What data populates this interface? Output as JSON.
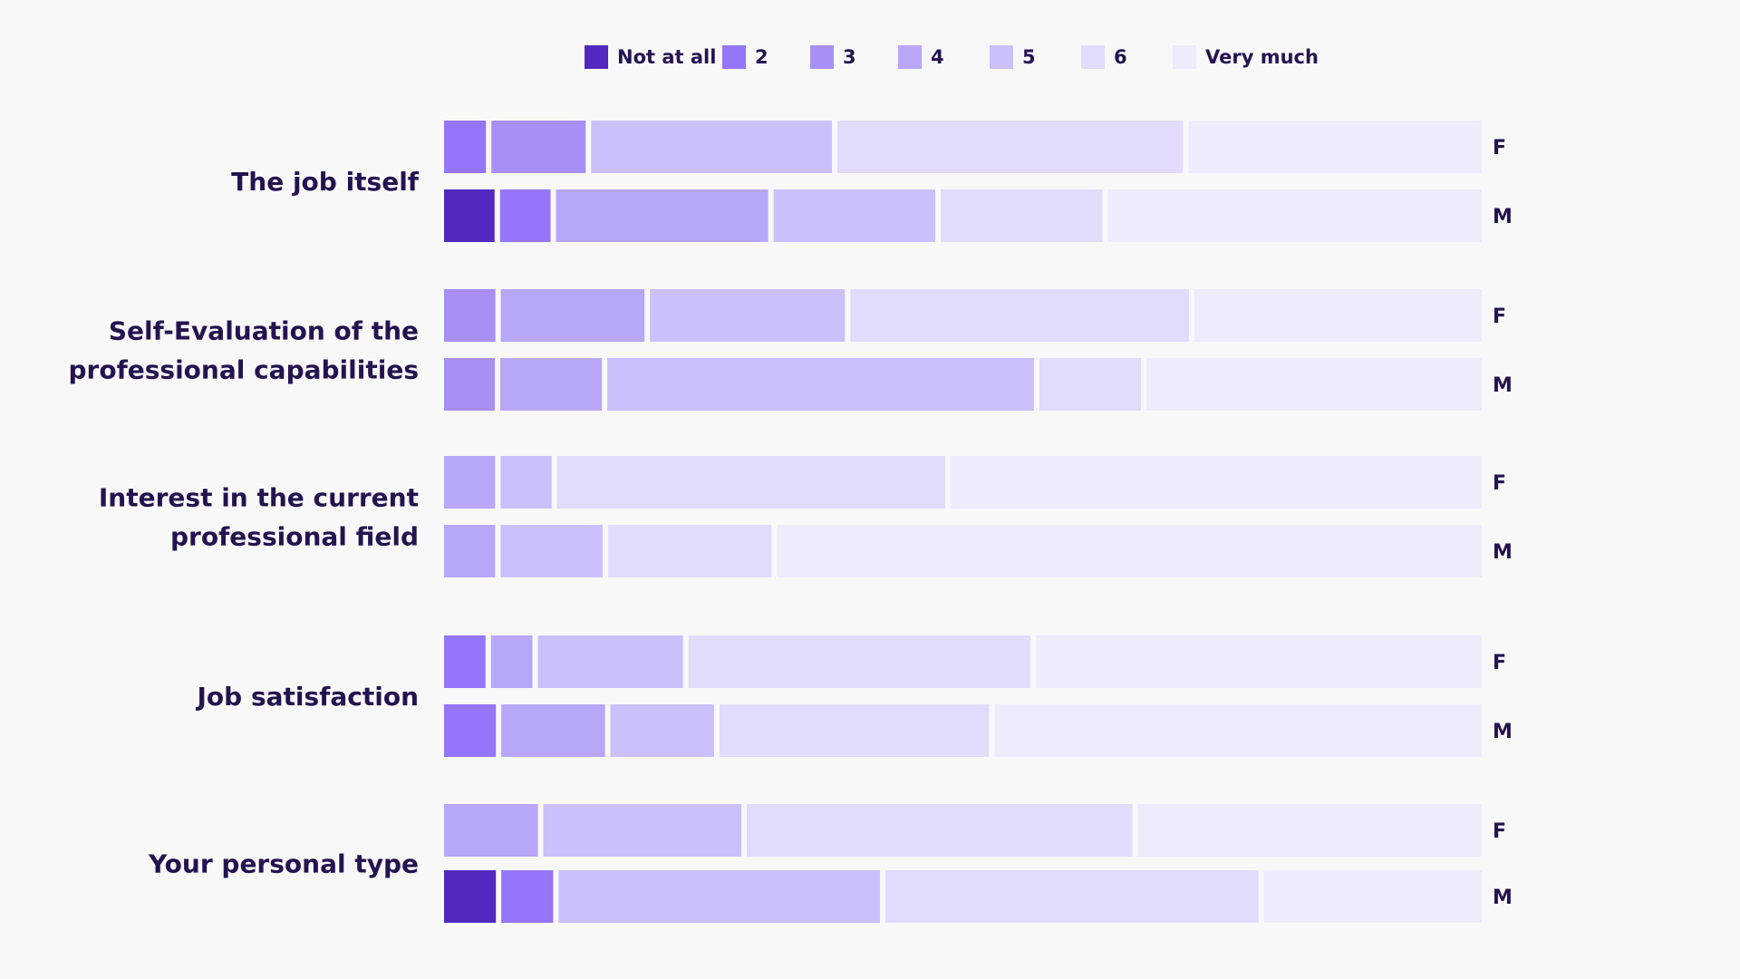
{
  "colors": {
    "background": "#f8f8f8",
    "text": "#24134f",
    "levels": [
      "#5129c0",
      "#9575f8",
      "#a88ff6",
      "#b8a6f8",
      "#cbc0fa",
      "#e2dbfc",
      "#eeebfd"
    ]
  },
  "chart_data": {
    "type": "bar",
    "orientation": "horizontal",
    "stacked": true,
    "normalized_percent": true,
    "legend": {
      "position": "top-center",
      "entries": [
        "Not at all",
        "2",
        "3",
        "4",
        "5",
        "6",
        "Very much"
      ]
    },
    "categories": [
      {
        "label_lines": [
          "The job itself"
        ],
        "groups": [
          {
            "label": "F",
            "values": [
              0,
              4,
              9,
              0,
              23,
              33,
              28
            ]
          },
          {
            "label": "M",
            "values": [
              5,
              5,
              0,
              21,
              16,
              16,
              37
            ]
          }
        ]
      },
      {
        "label_lines": [
          "Self-Evaluation of the",
          "professional capabilities"
        ],
        "groups": [
          {
            "label": "F",
            "values": [
              0,
              0,
              5,
              14,
              19,
              33,
              28
            ]
          },
          {
            "label": "M",
            "values": [
              0,
              0,
              5,
              10,
              42,
              10,
              33
            ]
          }
        ]
      },
      {
        "label_lines": [
          "Interest in the current",
          "professional field"
        ],
        "groups": [
          {
            "label": "F",
            "values": [
              0,
              0,
              0,
              5,
              5,
              38,
              52
            ]
          },
          {
            "label": "M",
            "values": [
              0,
              0,
              0,
              5,
              10,
              16,
              69
            ]
          }
        ]
      },
      {
        "label_lines": [
          "Job satisfaction"
        ],
        "groups": [
          {
            "label": "F",
            "values": [
              0,
              4,
              0,
              4,
              14,
              33,
              43
            ]
          },
          {
            "label": "M",
            "values": [
              0,
              5,
              0,
              10,
              10,
              26,
              47
            ]
          }
        ]
      },
      {
        "label_lines": [
          "Your personal type"
        ],
        "groups": [
          {
            "label": "F",
            "values": [
              0,
              0,
              0,
              9,
              19,
              37,
              33
            ]
          },
          {
            "label": "M",
            "values": [
              5,
              5,
              0,
              0,
              31,
              36,
              21
            ]
          }
        ]
      }
    ]
  }
}
